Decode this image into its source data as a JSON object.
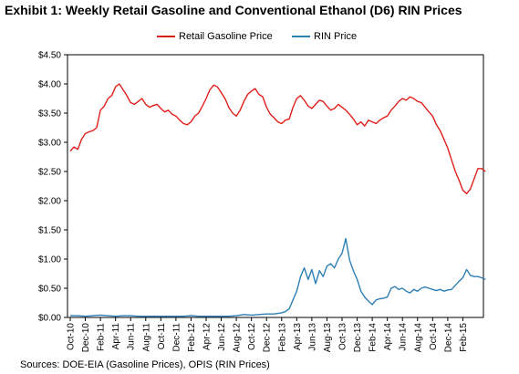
{
  "chart_data": {
    "type": "line",
    "title": "Exhibit 1: Weekly Retail Gasoline and Conventional Ethanol (D6) RIN Prices",
    "source": "Sources: DOE-EIA (Gasoline Prices), OPIS (RIN Prices)",
    "x_tick_labels": [
      "Oct-10",
      "Dec-10",
      "Feb-11",
      "Apr-11",
      "Jun-11",
      "Aug-11",
      "Oct-11",
      "Dec-11",
      "Feb-12",
      "Apr-12",
      "Jun-12",
      "Aug-12",
      "Oct-12",
      "Dec-12",
      "Feb-13",
      "Apr-13",
      "Jun-13",
      "Aug-13",
      "Oct-13",
      "Dec-13",
      "Feb-14",
      "Apr-14",
      "Jun-14",
      "Aug-14",
      "Oct-14",
      "Dec-14",
      "Feb-15"
    ],
    "y_tick_labels": [
      "$0.00",
      "$0.50",
      "$1.00",
      "$1.50",
      "$2.00",
      "$2.50",
      "$3.00",
      "$3.50",
      "$4.00",
      "$4.50"
    ],
    "ylim": [
      0,
      4.5
    ],
    "xlim_months": [
      0,
      54
    ],
    "grid": false,
    "legend_position": "top",
    "series": [
      {
        "name": "Retail Gasoline Price",
        "color": "#e0201b",
        "points": [
          [
            0,
            2.85
          ],
          [
            0.5,
            2.92
          ],
          [
            1,
            2.88
          ],
          [
            1.5,
            3.05
          ],
          [
            2,
            3.15
          ],
          [
            2.5,
            3.18
          ],
          [
            3,
            3.2
          ],
          [
            3.5,
            3.25
          ],
          [
            4,
            3.55
          ],
          [
            4.5,
            3.62
          ],
          [
            5,
            3.75
          ],
          [
            5.5,
            3.8
          ],
          [
            6,
            3.95
          ],
          [
            6.5,
            4.0
          ],
          [
            7,
            3.9
          ],
          [
            7.5,
            3.8
          ],
          [
            8,
            3.68
          ],
          [
            8.5,
            3.65
          ],
          [
            9,
            3.7
          ],
          [
            9.5,
            3.75
          ],
          [
            10,
            3.65
          ],
          [
            10.5,
            3.6
          ],
          [
            11,
            3.63
          ],
          [
            11.5,
            3.65
          ],
          [
            12,
            3.58
          ],
          [
            12.5,
            3.52
          ],
          [
            13,
            3.55
          ],
          [
            13.5,
            3.48
          ],
          [
            14,
            3.45
          ],
          [
            14.5,
            3.38
          ],
          [
            15,
            3.32
          ],
          [
            15.5,
            3.3
          ],
          [
            16,
            3.35
          ],
          [
            16.5,
            3.45
          ],
          [
            17,
            3.5
          ],
          [
            17.5,
            3.62
          ],
          [
            18,
            3.75
          ],
          [
            18.5,
            3.9
          ],
          [
            19,
            3.98
          ],
          [
            19.5,
            3.95
          ],
          [
            20,
            3.85
          ],
          [
            20.5,
            3.75
          ],
          [
            21,
            3.6
          ],
          [
            21.5,
            3.5
          ],
          [
            22,
            3.45
          ],
          [
            22.5,
            3.55
          ],
          [
            23,
            3.7
          ],
          [
            23.5,
            3.82
          ],
          [
            24,
            3.88
          ],
          [
            24.5,
            3.92
          ],
          [
            25,
            3.82
          ],
          [
            25.5,
            3.78
          ],
          [
            26,
            3.6
          ],
          [
            26.5,
            3.48
          ],
          [
            27,
            3.42
          ],
          [
            27.5,
            3.35
          ],
          [
            28,
            3.32
          ],
          [
            28.5,
            3.38
          ],
          [
            29,
            3.4
          ],
          [
            29.5,
            3.6
          ],
          [
            30,
            3.75
          ],
          [
            30.5,
            3.8
          ],
          [
            31,
            3.72
          ],
          [
            31.5,
            3.62
          ],
          [
            32,
            3.58
          ],
          [
            32.5,
            3.65
          ],
          [
            33,
            3.72
          ],
          [
            33.5,
            3.7
          ],
          [
            34,
            3.62
          ],
          [
            34.5,
            3.55
          ],
          [
            35,
            3.58
          ],
          [
            35.5,
            3.65
          ],
          [
            36,
            3.6
          ],
          [
            36.5,
            3.55
          ],
          [
            37,
            3.48
          ],
          [
            37.5,
            3.4
          ],
          [
            38,
            3.3
          ],
          [
            38.5,
            3.35
          ],
          [
            39,
            3.28
          ],
          [
            39.5,
            3.38
          ],
          [
            40,
            3.35
          ],
          [
            40.5,
            3.32
          ],
          [
            41,
            3.38
          ],
          [
            41.5,
            3.42
          ],
          [
            42,
            3.45
          ],
          [
            42.5,
            3.55
          ],
          [
            43,
            3.62
          ],
          [
            43.5,
            3.7
          ],
          [
            44,
            3.75
          ],
          [
            44.5,
            3.72
          ],
          [
            45,
            3.78
          ],
          [
            45.5,
            3.75
          ],
          [
            46,
            3.7
          ],
          [
            46.5,
            3.68
          ],
          [
            47,
            3.6
          ],
          [
            47.5,
            3.52
          ],
          [
            48,
            3.45
          ],
          [
            48.5,
            3.3
          ],
          [
            49,
            3.2
          ],
          [
            49.5,
            3.05
          ],
          [
            50,
            2.9
          ],
          [
            50.5,
            2.7
          ],
          [
            51,
            2.5
          ],
          [
            51.5,
            2.35
          ],
          [
            52,
            2.18
          ],
          [
            52.5,
            2.12
          ],
          [
            53,
            2.2
          ],
          [
            53.5,
            2.38
          ],
          [
            54,
            2.55
          ],
          [
            54.5,
            2.55
          ],
          [
            55,
            2.5
          ]
        ]
      },
      {
        "name": "RIN Price",
        "color": "#2e7fb5",
        "points": [
          [
            0,
            0.03
          ],
          [
            1,
            0.03
          ],
          [
            2,
            0.02
          ],
          [
            3,
            0.03
          ],
          [
            4,
            0.04
          ],
          [
            5,
            0.03
          ],
          [
            6,
            0.02
          ],
          [
            7,
            0.03
          ],
          [
            8,
            0.03
          ],
          [
            9,
            0.02
          ],
          [
            10,
            0.02
          ],
          [
            11,
            0.02
          ],
          [
            12,
            0.02
          ],
          [
            13,
            0.02
          ],
          [
            14,
            0.02
          ],
          [
            15,
            0.02
          ],
          [
            16,
            0.03
          ],
          [
            17,
            0.02
          ],
          [
            18,
            0.02
          ],
          [
            19,
            0.02
          ],
          [
            20,
            0.02
          ],
          [
            21,
            0.02
          ],
          [
            22,
            0.03
          ],
          [
            23,
            0.05
          ],
          [
            24,
            0.04
          ],
          [
            25,
            0.05
          ],
          [
            26,
            0.06
          ],
          [
            27,
            0.06
          ],
          [
            28,
            0.08
          ],
          [
            28.5,
            0.1
          ],
          [
            29,
            0.15
          ],
          [
            29.5,
            0.3
          ],
          [
            30,
            0.45
          ],
          [
            30.5,
            0.7
          ],
          [
            31,
            0.85
          ],
          [
            31.5,
            0.65
          ],
          [
            32,
            0.82
          ],
          [
            32.5,
            0.58
          ],
          [
            33,
            0.8
          ],
          [
            33.5,
            0.7
          ],
          [
            34,
            0.88
          ],
          [
            34.5,
            0.92
          ],
          [
            35,
            0.85
          ],
          [
            35.5,
            1.0
          ],
          [
            36,
            1.1
          ],
          [
            36.5,
            1.35
          ],
          [
            37,
            0.98
          ],
          [
            37.5,
            0.8
          ],
          [
            38,
            0.65
          ],
          [
            38.5,
            0.45
          ],
          [
            39,
            0.35
          ],
          [
            39.5,
            0.28
          ],
          [
            40,
            0.22
          ],
          [
            40.5,
            0.3
          ],
          [
            41,
            0.32
          ],
          [
            41.5,
            0.33
          ],
          [
            42,
            0.35
          ],
          [
            42.5,
            0.5
          ],
          [
            43,
            0.53
          ],
          [
            43.5,
            0.48
          ],
          [
            44,
            0.5
          ],
          [
            44.5,
            0.45
          ],
          [
            45,
            0.42
          ],
          [
            45.5,
            0.48
          ],
          [
            46,
            0.45
          ],
          [
            46.5,
            0.5
          ],
          [
            47,
            0.52
          ],
          [
            47.5,
            0.5
          ],
          [
            48,
            0.48
          ],
          [
            48.5,
            0.46
          ],
          [
            49,
            0.48
          ],
          [
            49.5,
            0.45
          ],
          [
            50,
            0.47
          ],
          [
            50.5,
            0.48
          ],
          [
            51,
            0.55
          ],
          [
            51.5,
            0.62
          ],
          [
            52,
            0.68
          ],
          [
            52.5,
            0.82
          ],
          [
            53,
            0.72
          ],
          [
            53.5,
            0.7
          ],
          [
            54,
            0.7
          ],
          [
            54.5,
            0.68
          ],
          [
            55,
            0.65
          ]
        ]
      }
    ]
  }
}
